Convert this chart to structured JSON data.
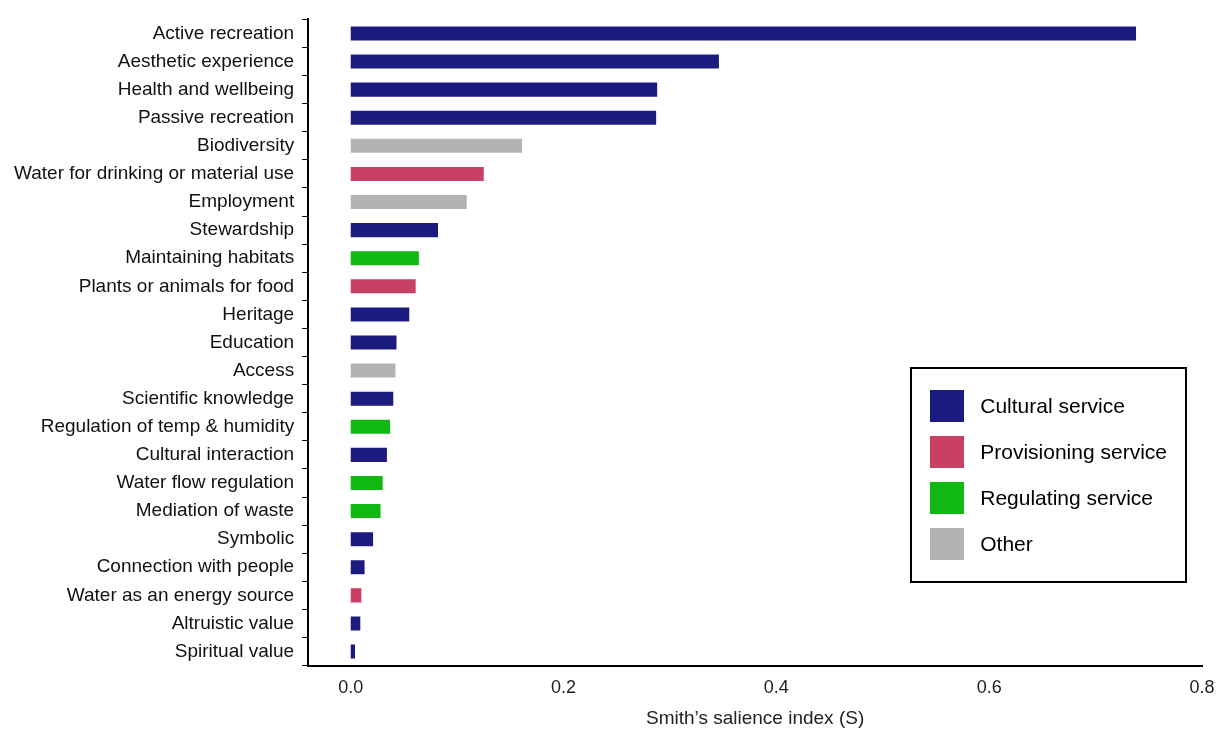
{
  "chart_data": {
    "type": "bar",
    "orientation": "horizontal",
    "xlabel": "Smith’s salience index (S)",
    "categories": [
      "Active recreation",
      "Aesthetic experience",
      "Health and wellbeing",
      "Passive recreation",
      "Biodiversity",
      "Water for drinking or material use",
      "Employment",
      "Stewardship",
      "Maintaining habitats",
      "Plants or animals for food",
      "Heritage",
      "Education",
      "Access",
      "Scientific knowledge",
      "Regulation of temp & humidity",
      "Cultural interaction",
      "Water flow regulation",
      "Mediation of waste",
      "Symbolic",
      "Connection with people",
      "Water as an energy source",
      "Altruistic value",
      "Spiritual value"
    ],
    "series": [
      {
        "name": "Cultural service",
        "color": "#1c1c80",
        "values": [
          0.738,
          0.346,
          0.288,
          0.287,
          null,
          null,
          null,
          0.082,
          null,
          null,
          0.055,
          0.043,
          null,
          0.04,
          null,
          0.034,
          null,
          null,
          0.021,
          0.013,
          null,
          0.009,
          0.004
        ]
      },
      {
        "name": "Provisioning service",
        "color": "#c84164",
        "values": [
          null,
          null,
          null,
          null,
          null,
          0.125,
          null,
          null,
          null,
          0.061,
          null,
          null,
          null,
          null,
          null,
          null,
          null,
          null,
          null,
          null,
          0.01,
          null,
          null
        ]
      },
      {
        "name": "Regulating service",
        "color": "#12b812",
        "values": [
          null,
          null,
          null,
          null,
          null,
          null,
          null,
          null,
          0.064,
          null,
          null,
          null,
          null,
          null,
          0.037,
          null,
          0.03,
          0.028,
          null,
          null,
          null,
          null,
          null
        ]
      },
      {
        "name": "Other",
        "color": "#b3b3b3",
        "values": [
          null,
          null,
          null,
          null,
          0.161,
          null,
          0.109,
          null,
          null,
          null,
          null,
          null,
          0.042,
          null,
          null,
          null,
          null,
          null,
          null,
          null,
          null,
          null,
          null
        ]
      }
    ],
    "xlim": [
      -0.04,
      0.8
    ],
    "xticks": [
      {
        "value": 0,
        "label": "0.0"
      },
      0.2,
      0.4,
      0.6,
      0.8
    ],
    "grid": false,
    "legend": "bottom right"
  }
}
